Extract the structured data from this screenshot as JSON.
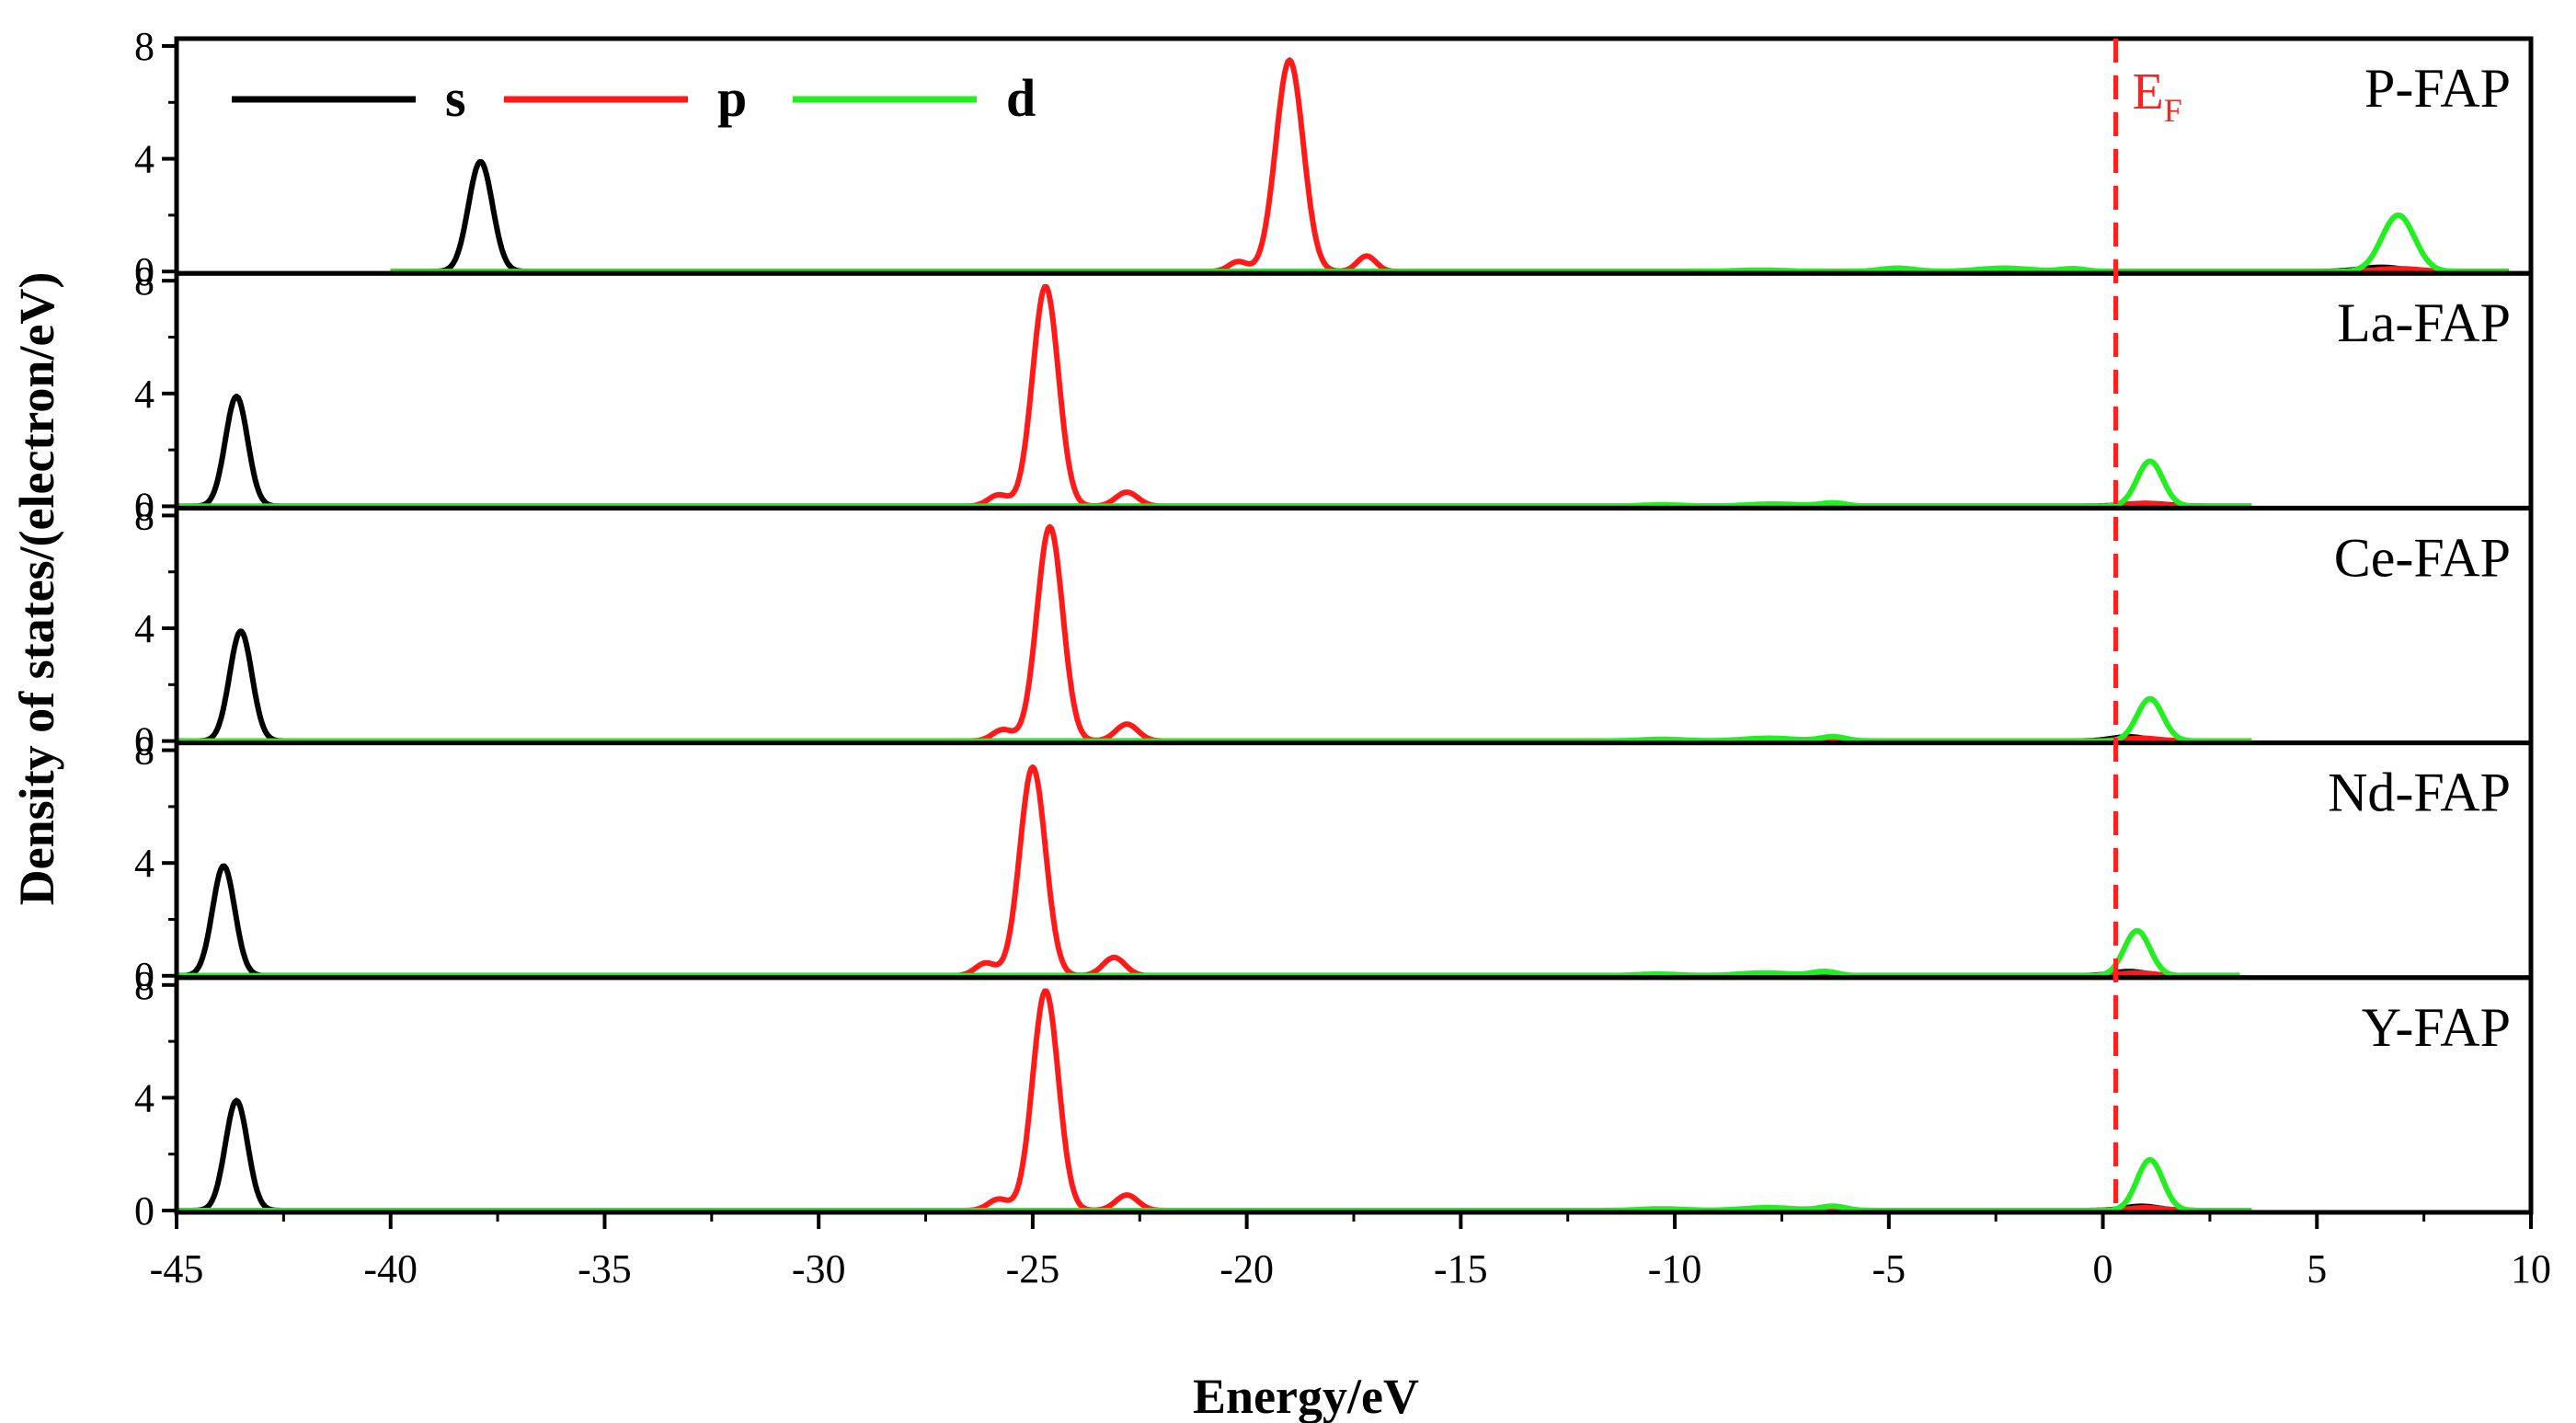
{
  "chart_data": {
    "type": "line",
    "xlabel": "Energy/eV",
    "ylabel": "Density of states/(electron/eV)",
    "xlim": [
      -45,
      10
    ],
    "x_ticks": [
      "-45",
      "-40",
      "-35",
      "-30",
      "-25",
      "-20",
      "-15",
      "-10",
      "-5",
      "0",
      "5",
      "10"
    ],
    "ylim": [
      0,
      8
    ],
    "y_ticks": [
      "0",
      "4",
      "8"
    ],
    "fermi_level": {
      "x": 0.3,
      "label_main": "E",
      "label_sub": "F",
      "color": "#ff2020"
    },
    "legend": {
      "placement": "top-left",
      "entries": [
        {
          "label": "s",
          "color": "#000000"
        },
        {
          "label": "p",
          "color": "#ff1a1a"
        },
        {
          "label": "d",
          "color": "#22ee22"
        }
      ]
    },
    "panels": [
      {
        "label": "P-FAP",
        "x_range": [
          -40,
          9.5
        ],
        "series": {
          "s": [
            [
              -37.9,
              3.9,
              0.28
            ],
            [
              6.5,
              0.15,
              0.5
            ]
          ],
          "p": [
            [
              -20.2,
              0.35,
              0.22
            ],
            [
              -19.0,
              7.5,
              0.32
            ],
            [
              -17.2,
              0.55,
              0.22
            ],
            [
              6.9,
              0.1,
              0.5
            ]
          ],
          "d": [
            [
              -8.0,
              0.05,
              0.6
            ],
            [
              -4.8,
              0.12,
              0.4
            ],
            [
              -2.3,
              0.12,
              0.6
            ],
            [
              -0.7,
              0.1,
              0.3
            ],
            [
              6.9,
              2.0,
              0.38
            ]
          ]
        }
      },
      {
        "label": "La-FAP",
        "x_range": [
          -45,
          3.5
        ],
        "series": {
          "s": [
            [
              -43.6,
              3.9,
              0.26
            ],
            [
              1.0,
              0.1,
              0.5
            ]
          ],
          "p": [
            [
              -25.8,
              0.4,
              0.24
            ],
            [
              -24.7,
              7.8,
              0.3
            ],
            [
              -22.8,
              0.5,
              0.26
            ],
            [
              1.0,
              0.1,
              0.4
            ]
          ],
          "d": [
            [
              -10.3,
              0.05,
              0.5
            ],
            [
              -7.7,
              0.08,
              0.6
            ],
            [
              -6.3,
              0.12,
              0.3
            ],
            [
              1.1,
              1.6,
              0.3
            ]
          ]
        }
      },
      {
        "label": "Ce-FAP",
        "x_range": [
          -45,
          3.5
        ],
        "series": {
          "s": [
            [
              -43.5,
              3.9,
              0.26
            ],
            [
              0.6,
              0.15,
              0.4
            ]
          ],
          "p": [
            [
              -25.7,
              0.4,
              0.24
            ],
            [
              -24.6,
              7.6,
              0.3
            ],
            [
              -22.8,
              0.6,
              0.26
            ],
            [
              0.9,
              0.1,
              0.4
            ]
          ],
          "d": [
            [
              -10.3,
              0.06,
              0.5
            ],
            [
              -7.8,
              0.1,
              0.6
            ],
            [
              -6.3,
              0.15,
              0.3
            ],
            [
              1.1,
              1.5,
              0.3
            ]
          ]
        }
      },
      {
        "label": "Nd-FAP",
        "x_range": [
          -45,
          3.2
        ],
        "series": {
          "s": [
            [
              -43.9,
              3.9,
              0.26
            ],
            [
              0.6,
              0.15,
              0.4
            ]
          ],
          "p": [
            [
              -26.1,
              0.45,
              0.24
            ],
            [
              -25.0,
              7.4,
              0.3
            ],
            [
              -23.1,
              0.65,
              0.26
            ],
            [
              0.8,
              0.1,
              0.4
            ]
          ],
          "d": [
            [
              -10.4,
              0.06,
              0.5
            ],
            [
              -7.9,
              0.1,
              0.6
            ],
            [
              -6.5,
              0.15,
              0.3
            ],
            [
              0.8,
              1.6,
              0.3
            ]
          ]
        }
      },
      {
        "label": "Y-FAP",
        "x_range": [
          -45,
          3.5
        ],
        "series": {
          "s": [
            [
              -43.6,
              3.9,
              0.26
            ],
            [
              0.9,
              0.15,
              0.4
            ]
          ],
          "p": [
            [
              -25.8,
              0.4,
              0.24
            ],
            [
              -24.7,
              7.8,
              0.3
            ],
            [
              -22.8,
              0.55,
              0.26
            ],
            [
              1.0,
              0.1,
              0.4
            ]
          ],
          "d": [
            [
              -10.3,
              0.06,
              0.5
            ],
            [
              -7.8,
              0.1,
              0.6
            ],
            [
              -6.3,
              0.15,
              0.3
            ],
            [
              1.1,
              1.8,
              0.3
            ]
          ]
        }
      }
    ]
  }
}
